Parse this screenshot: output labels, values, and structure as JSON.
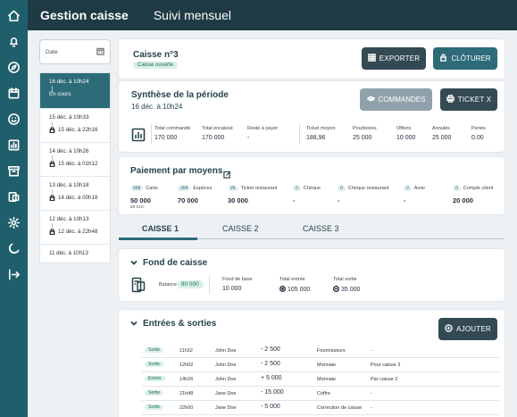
{
  "header": {
    "app_title": "Gestion caisse",
    "section_title": "Suivi mensuel"
  },
  "sidebar": {
    "icons": [
      "home-icon",
      "bell-icon",
      "compass-icon",
      "calendar-icon",
      "smile-icon",
      "chart-icon",
      "archive-icon",
      "money-icon",
      "gear-icon",
      "moon-icon",
      "logout-icon"
    ]
  },
  "filter": {
    "date_placeholder": "Date"
  },
  "sessions": [
    {
      "open": "16 déc. à 10h24",
      "close": "En cours",
      "active": true
    },
    {
      "open": "15 déc. à 10h33",
      "close": "15 déc. à 22h16"
    },
    {
      "open": "14 déc. à 10h26",
      "close": "15 déc. à 01h12"
    },
    {
      "open": "13 déc. à 10h18",
      "close": "14 déc. à 00h18"
    },
    {
      "open": "12 déc. à 10h13",
      "close": "12 déc. à 22h48"
    },
    {
      "open": "11 déc. à 10h13",
      "close": ""
    }
  ],
  "caisse": {
    "title": "Caisse n°3",
    "status": "Caisse ouverte",
    "export_label": "EXPORTER",
    "close_label": "CLÔTURER"
  },
  "synthese": {
    "title": "Synthèse de la période",
    "date": "16 déc. à 10h24",
    "orders_label": "COMMANDES",
    "ticket_label": "TICKET X",
    "stats": [
      {
        "label": "Total commandé",
        "value": "170 000"
      },
      {
        "label": "Total encaissé",
        "value": "170 000"
      },
      {
        "label": "Reste à payer",
        "value": "-"
      },
      {
        "label": "Ticket moyen",
        "value": "188,96"
      },
      {
        "label": "Pourboires",
        "value": "25 000"
      },
      {
        "label": "Offerts",
        "value": "10 000"
      },
      {
        "label": "Annulés",
        "value": "25 000"
      },
      {
        "label": "Pertes",
        "value": "0.00"
      }
    ]
  },
  "paiement": {
    "title": "Paiement par moyens",
    "items": [
      {
        "count": "558",
        "label": "Carte",
        "value": "50 000",
        "sub": "50 010"
      },
      {
        "count": "304",
        "label": "Espèces",
        "value": "70 000",
        "sub": ""
      },
      {
        "count": "26",
        "label": "Ticket restaurant",
        "value": "30 000",
        "sub": ""
      },
      {
        "count": "0",
        "label": "Chèque",
        "value": "-",
        "sub": ""
      },
      {
        "count": "0",
        "label": "Chèque restaurant",
        "value": "-",
        "sub": ""
      },
      {
        "count": "0",
        "label": "Avoir",
        "value": "-",
        "sub": ""
      },
      {
        "count": "0",
        "label": "Compte client",
        "value": "20 000",
        "sub": ""
      }
    ]
  },
  "tabs": [
    "CAISSE 1",
    "CAISSE 2",
    "CAISSE 3"
  ],
  "fond": {
    "title": "Fond de caisse",
    "balance_label": "Balance",
    "balance_value": "80 000",
    "base_label": "Fond de base",
    "base_value": "10 000",
    "in_label": "Total entrée",
    "in_value": "105 000",
    "out_label": "Total sortie",
    "out_value": "35 000"
  },
  "entrees": {
    "title": "Entrées & sorties",
    "add_label": "AJOUTER",
    "rows": [
      {
        "type": "Sortie",
        "time": "11h32",
        "user": "John Doe",
        "amount": "- 2 500",
        "category": "Fournisseurs",
        "note": "-"
      },
      {
        "type": "Sortie",
        "time": "12h02",
        "user": "John Doe",
        "amount": "- 2 500",
        "category": "Monnaie",
        "note": "Pour caisse 3"
      },
      {
        "type": "Entrée",
        "time": "14h26",
        "user": "John Doe",
        "amount": "+ 5 000",
        "category": "Monnaie",
        "note": "Par caisse 2"
      },
      {
        "type": "Sortie",
        "time": "21h48",
        "user": "Jane Doe",
        "amount": "- 15 000",
        "category": "Coffre",
        "note": "-"
      },
      {
        "type": "Sortie",
        "time": "22h00",
        "user": "Jane Doe",
        "amount": "- 5 000",
        "category": "Correction de caisse",
        "note": "-"
      }
    ]
  }
}
